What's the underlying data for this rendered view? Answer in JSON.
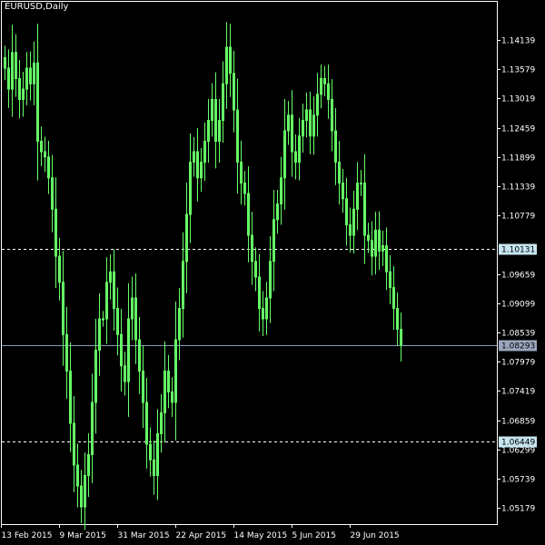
{
  "window": {
    "title": "EURUSD,Daily"
  },
  "colors": {
    "background": "#000000",
    "candle": "#66ff66",
    "frame": "#ffffff",
    "level_line": "#ffffff",
    "current_price_line": "#8899bb",
    "level_tag_fill": "#c6e6f0",
    "current_tag_fill": "#9aa6bc"
  },
  "chart_data": {
    "type": "candlestick",
    "symbol": "EURUSD",
    "timeframe": "Daily",
    "grid": false,
    "ylim": [
      1.0487,
      1.1487
    ],
    "y_ticks": [
      "1.14139",
      "1.13579",
      "1.13019",
      "1.12459",
      "1.11899",
      "1.11339",
      "1.10779",
      "1.09659",
      "1.09099",
      "1.08539",
      "1.07979",
      "1.07419",
      "1.06859",
      "1.06299",
      "1.05739",
      "1.05179"
    ],
    "x_ticks": [
      {
        "label": "13 Feb 2015",
        "bar": 0
      },
      {
        "label": "9 Mar 2015",
        "bar": 16
      },
      {
        "label": "31 Mar 2015",
        "bar": 32
      },
      {
        "label": "22 Apr 2015",
        "bar": 48
      },
      {
        "label": "14 May 2015",
        "bar": 64
      },
      {
        "label": "5 Jun 2015",
        "bar": 80
      },
      {
        "label": "29 Jun 2015",
        "bar": 96
      }
    ],
    "levels": [
      {
        "name": "upper-level",
        "value": 1.10131,
        "label": "1.10131",
        "style": "dashed"
      },
      {
        "name": "current-price",
        "value": 1.08293,
        "label": "1.08293",
        "style": "solid"
      },
      {
        "name": "lower-level",
        "value": 1.06449,
        "label": "1.06449",
        "style": "dashed"
      }
    ],
    "closes": [
      1.136,
      1.132,
      1.139,
      1.134,
      1.13,
      1.132,
      1.136,
      1.133,
      1.137,
      1.122,
      1.12,
      1.119,
      1.115,
      1.109,
      1.1,
      1.095,
      1.085,
      1.078,
      1.068,
      1.06,
      1.056,
      1.052,
      1.058,
      1.062,
      1.072,
      1.082,
      1.088,
      1.088,
      1.095,
      1.097,
      1.09,
      1.085,
      1.079,
      1.076,
      1.088,
      1.092,
      1.084,
      1.078,
      1.072,
      1.064,
      1.061,
      1.058,
      1.066,
      1.07,
      1.078,
      1.074,
      1.072,
      1.084,
      1.09,
      1.099,
      1.108,
      1.118,
      1.12,
      1.115,
      1.118,
      1.122,
      1.126,
      1.13,
      1.122,
      1.126,
      1.133,
      1.14,
      1.135,
      1.128,
      1.118,
      1.114,
      1.112,
      1.104,
      1.099,
      1.096,
      1.09,
      1.088,
      1.092,
      1.099,
      1.107,
      1.11,
      1.115,
      1.124,
      1.127,
      1.12,
      1.118,
      1.123,
      1.126,
      1.128,
      1.123,
      1.127,
      1.131,
      1.134,
      1.133,
      1.13,
      1.124,
      1.118,
      1.114,
      1.111,
      1.106,
      1.104,
      1.109,
      1.114,
      1.114,
      1.104,
      1.103,
      1.1,
      1.105,
      1.101,
      1.102,
      1.097,
      1.094,
      1.09,
      1.086,
      1.083
    ]
  }
}
